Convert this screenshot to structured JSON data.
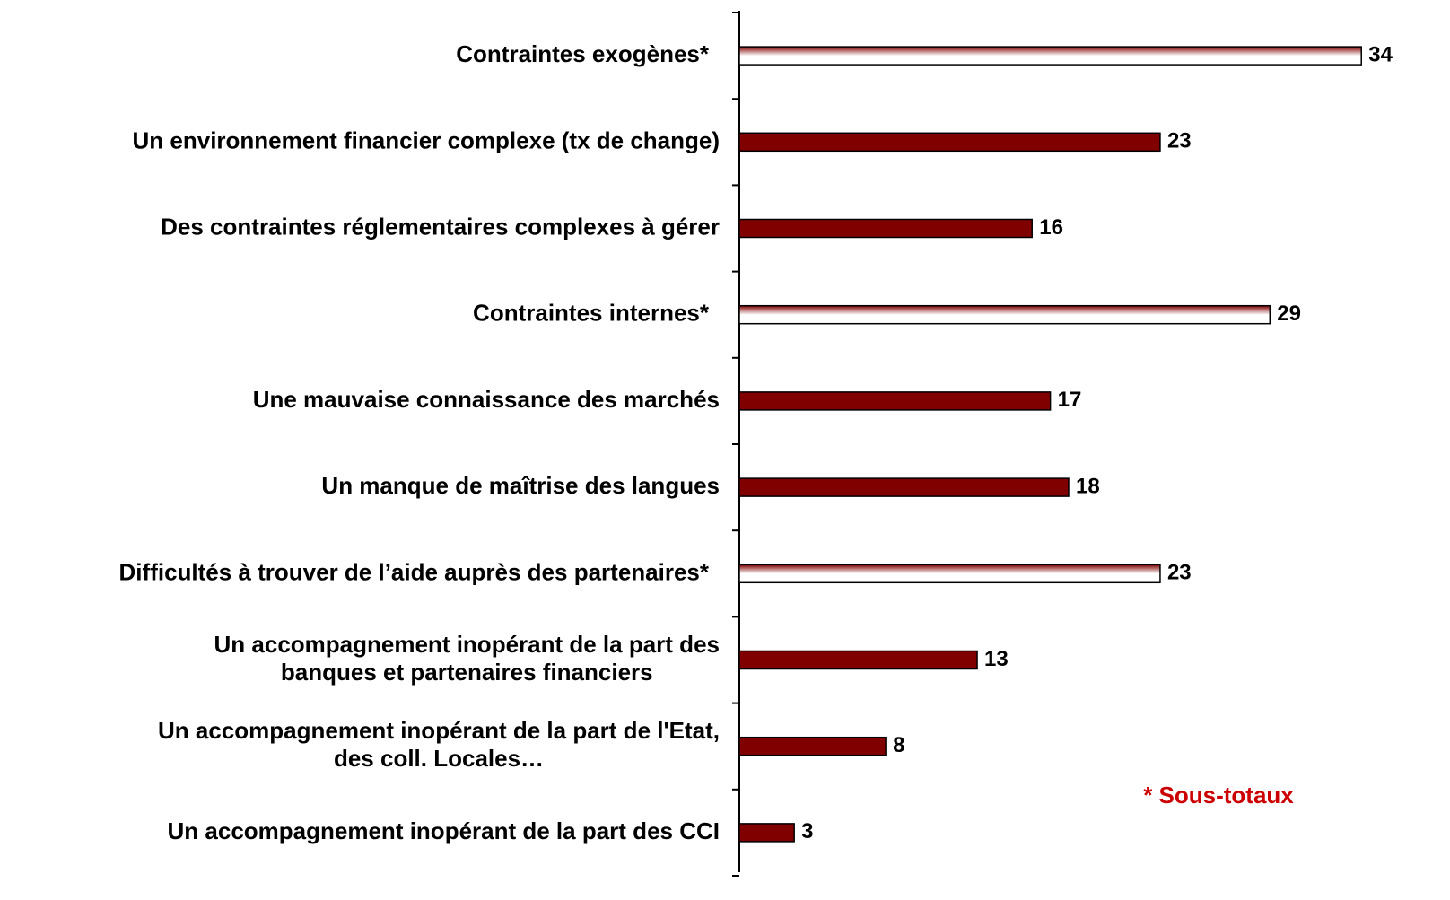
{
  "chart_data": {
    "type": "bar",
    "orientation": "horizontal",
    "categories": [
      "Contraintes exogènes*",
      "Un environnement financier complexe (tx de change)",
      "Des contraintes réglementaires complexes à gérer",
      "Contraintes internes*",
      "Une mauvaise connaissance des marchés",
      "Un manque de maîtrise des langues",
      "Difficultés à trouver de l’aide auprès des partenaires*",
      "Un accompagnement inopérant de la part des\nbanques et partenaires financiers",
      "Un accompagnement inopérant de la part de l'Etat,\ndes coll. Locales…",
      "Un accompagnement inopérant de la part des CCI"
    ],
    "values": [
      34,
      23,
      16,
      29,
      17,
      18,
      23,
      13,
      8,
      3
    ],
    "subtotal": [
      true,
      false,
      false,
      true,
      false,
      false,
      true,
      false,
      false,
      false
    ],
    "color": "#800000",
    "subtotal_color": "#cc0000",
    "xlim": [
      0,
      36
    ],
    "annotation": "* Sous-totaux",
    "annotation_color": "#cc0000"
  }
}
